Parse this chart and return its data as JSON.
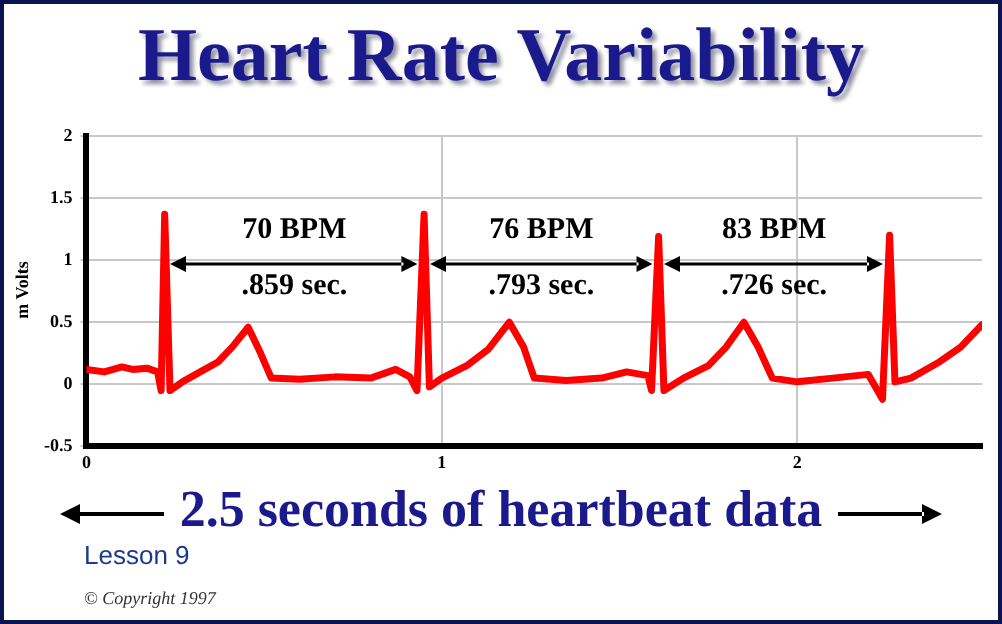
{
  "chart_data": {
    "type": "line",
    "title": "Heart Rate Variability",
    "xlabel": "2.5 seconds of heartbeat data",
    "ylabel": "m Volts",
    "x": [
      0,
      0.05,
      0.1,
      0.13,
      0.17,
      0.2,
      0.21,
      0.22,
      0.235,
      0.27,
      0.32,
      0.37,
      0.41,
      0.455,
      0.49,
      0.52,
      0.6,
      0.7,
      0.8,
      0.87,
      0.91,
      0.93,
      0.95,
      0.965,
      1.0,
      1.07,
      1.13,
      1.19,
      1.23,
      1.26,
      1.35,
      1.45,
      1.52,
      1.58,
      1.59,
      1.61,
      1.625,
      1.68,
      1.75,
      1.8,
      1.85,
      1.89,
      1.93,
      2.0,
      2.1,
      2.2,
      2.24,
      2.26,
      2.275,
      2.32,
      2.4,
      2.46,
      2.52
    ],
    "series": [
      {
        "color": "#ff0000",
        "values": [
          0.12,
          0.1,
          0.14,
          0.12,
          0.13,
          0.1,
          -0.05,
          1.37,
          -0.05,
          0.02,
          0.1,
          0.18,
          0.3,
          0.46,
          0.25,
          0.05,
          0.04,
          0.06,
          0.05,
          0.12,
          0.06,
          -0.05,
          1.37,
          -0.02,
          0.05,
          0.15,
          0.28,
          0.5,
          0.3,
          0.05,
          0.03,
          0.05,
          0.1,
          0.07,
          -0.05,
          1.19,
          -0.05,
          0.05,
          0.15,
          0.3,
          0.5,
          0.3,
          0.05,
          0.02,
          0.05,
          0.08,
          -0.12,
          1.2,
          0.02,
          0.05,
          0.18,
          0.3,
          0.48
        ]
      }
    ],
    "xlim": [
      0,
      2.52
    ],
    "xticks": [
      0,
      1,
      2
    ],
    "ylim": [
      -0.5,
      2
    ],
    "yticks": [
      -0.5,
      0,
      0.5,
      1,
      1.5,
      2
    ],
    "grid": true,
    "legend": false,
    "marker": "none",
    "line_style": "solid",
    "annotations": [
      "70 BPM",
      ".859 sec.",
      "76 BPM",
      ".793 sec.",
      "83 BPM",
      ".726 sec.",
      "Lesson 9",
      "© Copyright 1997"
    ]
  }
}
